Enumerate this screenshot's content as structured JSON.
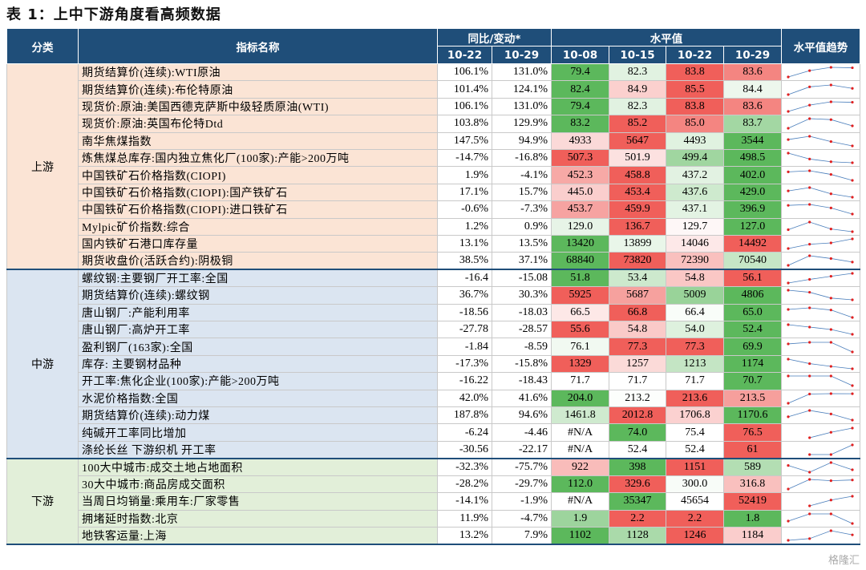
{
  "title": "表 1：上中下游角度看高频数据",
  "watermark": "格隆汇",
  "table": {
    "header": {
      "category": "分类",
      "name": "指标名称",
      "change": "同比/变动*",
      "level": "水平值",
      "trend": "水平值趋势",
      "change_dates": [
        "10-22",
        "10-29"
      ],
      "level_dates": [
        "10-08",
        "10-15",
        "10-22",
        "10-29"
      ]
    },
    "groups": [
      {
        "label": "上游",
        "color": "#fbe4d5",
        "rows": [
          {
            "name": "期货结算价(连续):WTI原油",
            "change": [
              "106.1%",
              "131.0%"
            ],
            "level": [
              "79.4",
              "82.3",
              "83.8",
              "83.6"
            ]
          },
          {
            "name": "期货结算价(连续):布伦特原油",
            "change": [
              "101.4%",
              "124.1%"
            ],
            "level": [
              "82.4",
              "84.9",
              "85.5",
              "84.4"
            ]
          },
          {
            "name": "现货价:原油:美国西德克萨斯中级轻质原油(WTI)",
            "change": [
              "106.1%",
              "131.0%"
            ],
            "level": [
              "79.4",
              "82.3",
              "83.8",
              "83.6"
            ]
          },
          {
            "name": "现货价:原油:英国布伦特Dtd",
            "change": [
              "103.8%",
              "129.9%"
            ],
            "level": [
              "83.2",
              "85.2",
              "85.0",
              "83.7"
            ]
          },
          {
            "name": "南华焦煤指数",
            "change": [
              "147.5%",
              "94.9%"
            ],
            "level": [
              "4933",
              "5647",
              "4493",
              "3544"
            ]
          },
          {
            "name": "炼焦煤总库存:国内独立焦化厂(100家):产能>200万吨",
            "change": [
              "-14.7%",
              "-16.8%"
            ],
            "level": [
              "507.3",
              "501.9",
              "499.4",
              "498.5"
            ]
          },
          {
            "name": "中国铁矿石价格指数(CIOPI)",
            "change": [
              "1.9%",
              "-4.1%"
            ],
            "level": [
              "452.3",
              "458.8",
              "437.2",
              "402.0"
            ]
          },
          {
            "name": "中国铁矿石价格指数(CIOPI):国产铁矿石",
            "change": [
              "17.1%",
              "15.7%"
            ],
            "level": [
              "445.0",
              "453.4",
              "437.6",
              "429.0"
            ]
          },
          {
            "name": "中国铁矿石价格指数(CIOPI):进口铁矿石",
            "change": [
              "-0.6%",
              "-7.3%"
            ],
            "level": [
              "453.7",
              "459.9",
              "437.1",
              "396.9"
            ]
          },
          {
            "name": "Mylpic矿价指数:综合",
            "change": [
              "1.2%",
              "0.9%"
            ],
            "level": [
              "129.0",
              "136.7",
              "129.7",
              "127.0"
            ]
          },
          {
            "name": "国内铁矿石港口库存量",
            "change": [
              "13.1%",
              "13.5%"
            ],
            "level": [
              "13420",
              "13899",
              "14046",
              "14492"
            ]
          },
          {
            "name": "期货收盘价(活跃合约):阴极铜",
            "change": [
              "38.5%",
              "37.1%"
            ],
            "level": [
              "68840",
              "73820",
              "72390",
              "70540"
            ]
          }
        ]
      },
      {
        "label": "中游",
        "color": "#dbe5f1",
        "rows": [
          {
            "name": "螺纹钢:主要钢厂开工率:全国",
            "change": [
              "-16.4",
              "-15.08"
            ],
            "level": [
              "51.8",
              "53.4",
              "54.8",
              "56.1"
            ]
          },
          {
            "name": "期货结算价(连续):螺纹钢",
            "change": [
              "36.7%",
              "30.3%"
            ],
            "level": [
              "5925",
              "5687",
              "5009",
              "4806"
            ]
          },
          {
            "name": "唐山钢厂:产能利用率",
            "change": [
              "-18.56",
              "-18.03"
            ],
            "level": [
              "66.5",
              "66.8",
              "66.4",
              "65.0"
            ]
          },
          {
            "name": "唐山钢厂:高炉开工率",
            "change": [
              "-27.78",
              "-28.57"
            ],
            "level": [
              "55.6",
              "54.8",
              "54.0",
              "52.4"
            ]
          },
          {
            "name": "盈利钢厂(163家):全国",
            "change": [
              "-1.84",
              "-8.59"
            ],
            "level": [
              "76.1",
              "77.3",
              "77.3",
              "69.9"
            ]
          },
          {
            "name": "库存: 主要钢材品种",
            "change": [
              "-17.3%",
              "-15.8%"
            ],
            "level": [
              "1329",
              "1257",
              "1213",
              "1174"
            ]
          },
          {
            "name": "开工率:焦化企业(100家):产能>200万吨",
            "change": [
              "-16.22",
              "-18.43"
            ],
            "level": [
              "71.7",
              "71.7",
              "71.7",
              "70.7"
            ]
          },
          {
            "name": "水泥价格指数:全国",
            "change": [
              "42.0%",
              "41.6%"
            ],
            "level": [
              "204.0",
              "213.2",
              "213.6",
              "213.5"
            ]
          },
          {
            "name": "期货结算价(连续):动力煤",
            "change": [
              "187.8%",
              "94.6%"
            ],
            "level": [
              "1461.8",
              "2012.8",
              "1706.8",
              "1170.6"
            ]
          },
          {
            "name": "纯碱开工率同比增加",
            "change": [
              "-6.24",
              "-4.46"
            ],
            "level": [
              "#N/A",
              "74.0",
              "75.4",
              "76.5"
            ]
          },
          {
            "name": "涤纶长丝 下游织机 开工率",
            "change": [
              "-30.56",
              "-22.17"
            ],
            "level": [
              "#N/A",
              "52.4",
              "52.4",
              "61"
            ]
          }
        ]
      },
      {
        "label": "下游",
        "color": "#e2efd9",
        "rows": [
          {
            "name": "100大中城市:成交土地占地面积",
            "change": [
              "-32.3%",
              "-75.7%"
            ],
            "level": [
              "922",
              "398",
              "1151",
              "589"
            ]
          },
          {
            "name": "30大中城市:商品房成交面积",
            "change": [
              "-28.2%",
              "-29.7%"
            ],
            "level": [
              "112.0",
              "329.6",
              "300.0",
              "316.8"
            ]
          },
          {
            "name": "当周日均销量:乘用车:厂家零售",
            "change": [
              "-14.1%",
              "-1.9%"
            ],
            "level": [
              "#N/A",
              "35347",
              "45654",
              "52419"
            ]
          },
          {
            "name": "拥堵延时指数:北京",
            "change": [
              "11.9%",
              "-4.7%"
            ],
            "level": [
              "1.9",
              "2.2",
              "2.2",
              "1.8"
            ]
          },
          {
            "name": "地铁客运量:上海",
            "change": [
              "13.2%",
              "7.9%"
            ],
            "level": [
              "1102",
              "1128",
              "1246",
              "1184"
            ]
          }
        ]
      }
    ]
  }
}
